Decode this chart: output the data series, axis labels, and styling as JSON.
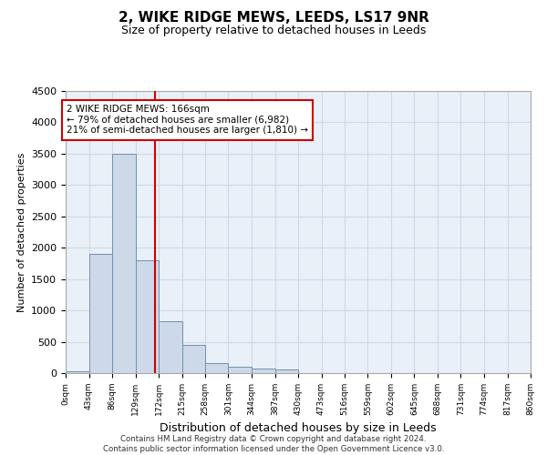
{
  "title": "2, WIKE RIDGE MEWS, LEEDS, LS17 9NR",
  "subtitle": "Size of property relative to detached houses in Leeds",
  "xlabel": "Distribution of detached houses by size in Leeds",
  "ylabel": "Number of detached properties",
  "footer_line1": "Contains HM Land Registry data © Crown copyright and database right 2024.",
  "footer_line2": "Contains public sector information licensed under the Open Government Licence v3.0.",
  "annotation_line1": "2 WIKE RIDGE MEWS: 166sqm",
  "annotation_line2": "← 79% of detached houses are smaller (6,982)",
  "annotation_line3": "21% of semi-detached houses are larger (1,810) →",
  "property_size": 166,
  "bin_edges": [
    0,
    43,
    86,
    129,
    172,
    215,
    258,
    301,
    344,
    387,
    430,
    473,
    516,
    559,
    602,
    645,
    688,
    731,
    774,
    817,
    860
  ],
  "bar_heights": [
    30,
    1900,
    3500,
    1800,
    830,
    450,
    160,
    100,
    75,
    65,
    0,
    0,
    0,
    0,
    0,
    0,
    0,
    0,
    0,
    0
  ],
  "bar_color": "#cdd9e8",
  "bar_edge_color": "#7090b0",
  "vline_color": "#cc0000",
  "annotation_box_color": "#cc0000",
  "grid_color": "#d0d8e8",
  "background_color": "#eaf0f8",
  "ylim": [
    0,
    4500
  ],
  "yticks": [
    0,
    500,
    1000,
    1500,
    2000,
    2500,
    3000,
    3500,
    4000,
    4500
  ]
}
